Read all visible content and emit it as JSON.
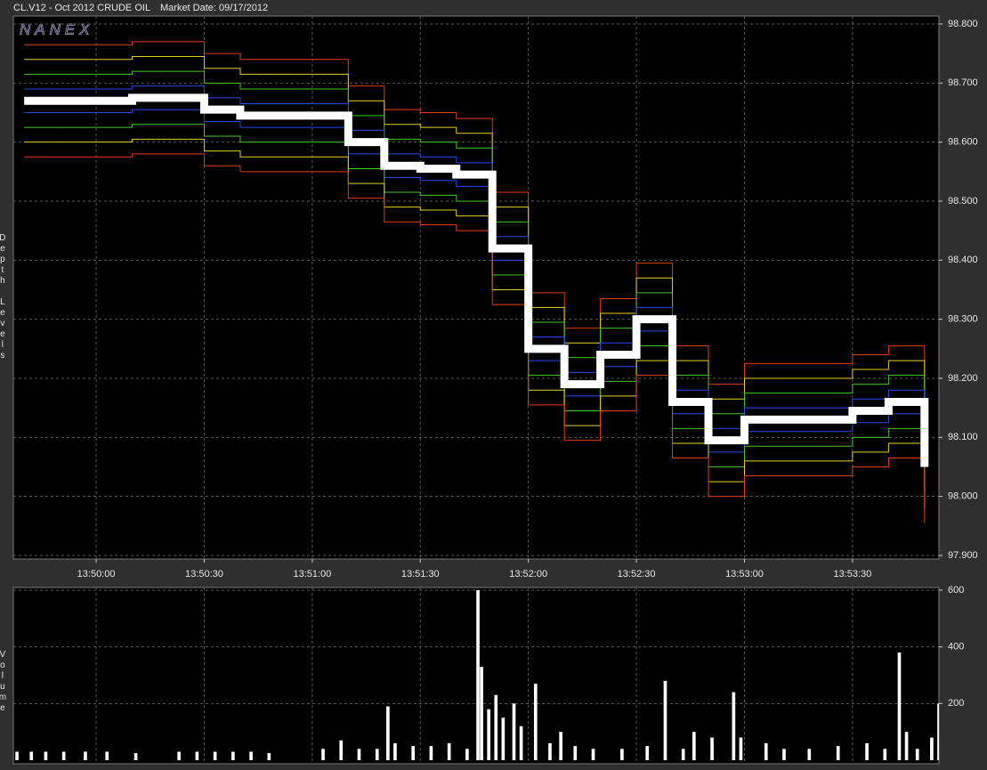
{
  "chart_data": [
    {
      "type": "line",
      "step": true,
      "title": "CL.V12 - Oct 2012 CRUDE OIL",
      "subtitle": "Market Date: 09/17/2012",
      "watermark": "NANEX",
      "ylabel": "Depth Levels",
      "x": [
        49780,
        49790,
        49800,
        49810,
        49820,
        49830,
        49840,
        49850,
        49860,
        49870,
        49880,
        49890,
        49900,
        49910,
        49920,
        49930,
        49940,
        49950,
        49960,
        49970,
        49980,
        49990,
        50000,
        50010,
        50020,
        50030
      ],
      "xlim": [
        49777,
        50034
      ],
      "xticks": [
        {
          "value": 49800,
          "label": "13:50:00"
        },
        {
          "value": 49830,
          "label": "13:50:30"
        },
        {
          "value": 49860,
          "label": "13:51:00"
        },
        {
          "value": 49890,
          "label": "13:51:30"
        },
        {
          "value": 49920,
          "label": "13:52:00"
        },
        {
          "value": 49950,
          "label": "13:52:30"
        },
        {
          "value": 49980,
          "label": "13:53:00"
        },
        {
          "value": 50010,
          "label": "13:53:30"
        }
      ],
      "ylim": [
        97.9,
        98.8
      ],
      "yticks": [
        {
          "value": 98.8,
          "label": "98.800"
        },
        {
          "value": 98.7,
          "label": "98.700"
        },
        {
          "value": 98.6,
          "label": "98.600"
        },
        {
          "value": 98.5,
          "label": "98.500"
        },
        {
          "value": 98.4,
          "label": "98.400"
        },
        {
          "value": 98.3,
          "label": "98.300"
        },
        {
          "value": 98.2,
          "label": "98.200"
        },
        {
          "value": 98.1,
          "label": "98.100"
        },
        {
          "value": 98,
          "label": "98.000"
        },
        {
          "value": 97.9,
          "label": "97.900"
        }
      ],
      "grid": true,
      "series": [
        {
          "color": "#e83a14",
          "line_width": 1,
          "values": [
            98.765,
            98.765,
            98.765,
            98.77,
            98.77,
            98.75,
            98.74,
            98.74,
            98.74,
            98.695,
            98.655,
            98.65,
            98.64,
            98.515,
            98.345,
            98.285,
            98.335,
            98.395,
            98.255,
            98.19,
            98.225,
            98.225,
            98.225,
            98.24,
            98.255,
            98.145
          ]
        },
        {
          "color": "#e8d020",
          "line_width": 1,
          "values": [
            98.74,
            98.74,
            98.74,
            98.745,
            98.745,
            98.725,
            98.715,
            98.715,
            98.715,
            98.67,
            98.63,
            98.625,
            98.615,
            98.49,
            98.32,
            98.26,
            98.31,
            98.37,
            98.23,
            98.165,
            98.2,
            98.2,
            98.2,
            98.215,
            98.23,
            98.12
          ]
        },
        {
          "color": "#44c824",
          "line_width": 1,
          "values": [
            98.715,
            98.715,
            98.715,
            98.72,
            98.72,
            98.7,
            98.69,
            98.69,
            98.69,
            98.645,
            98.605,
            98.6,
            98.59,
            98.465,
            98.295,
            98.235,
            98.285,
            98.345,
            98.205,
            98.14,
            98.175,
            98.175,
            98.175,
            98.19,
            98.205,
            98.095
          ]
        },
        {
          "color": "#2848f0",
          "line_width": 1,
          "values": [
            98.69,
            98.69,
            98.69,
            98.695,
            98.695,
            98.675,
            98.665,
            98.665,
            98.665,
            98.62,
            98.58,
            98.575,
            98.565,
            98.44,
            98.27,
            98.21,
            98.26,
            98.32,
            98.18,
            98.115,
            98.15,
            98.15,
            98.15,
            98.165,
            98.18,
            98.07
          ]
        },
        {
          "color": "#2848f0",
          "line_width": 1,
          "values": [
            98.65,
            98.65,
            98.65,
            98.655,
            98.655,
            98.635,
            98.625,
            98.625,
            98.625,
            98.58,
            98.54,
            98.535,
            98.525,
            98.4,
            98.23,
            98.17,
            98.22,
            98.28,
            98.14,
            98.075,
            98.11,
            98.11,
            98.11,
            98.125,
            98.14,
            98.03
          ]
        },
        {
          "color": "#44c824",
          "line_width": 1,
          "values": [
            98.625,
            98.625,
            98.625,
            98.63,
            98.63,
            98.61,
            98.6,
            98.6,
            98.6,
            98.555,
            98.515,
            98.51,
            98.5,
            98.375,
            98.205,
            98.145,
            98.195,
            98.255,
            98.115,
            98.05,
            98.085,
            98.085,
            98.085,
            98.1,
            98.115,
            98.005
          ]
        },
        {
          "color": "#e8d020",
          "line_width": 1,
          "values": [
            98.6,
            98.6,
            98.6,
            98.605,
            98.605,
            98.585,
            98.575,
            98.575,
            98.575,
            98.53,
            98.49,
            98.485,
            98.475,
            98.35,
            98.18,
            98.12,
            98.17,
            98.23,
            98.09,
            98.025,
            98.06,
            98.06,
            98.06,
            98.075,
            98.09,
            97.98
          ]
        },
        {
          "color": "#e83a14",
          "line_width": 1,
          "values": [
            98.575,
            98.575,
            98.575,
            98.58,
            98.58,
            98.56,
            98.55,
            98.55,
            98.55,
            98.505,
            98.465,
            98.46,
            98.45,
            98.325,
            98.155,
            98.095,
            98.145,
            98.205,
            98.065,
            98,
            98.035,
            98.035,
            98.035,
            98.05,
            98.065,
            97.955
          ]
        },
        {
          "color": "#ffffff",
          "line_width": 9,
          "values": [
            98.67,
            98.67,
            98.67,
            98.675,
            98.675,
            98.655,
            98.645,
            98.645,
            98.645,
            98.6,
            98.56,
            98.555,
            98.545,
            98.42,
            98.25,
            98.19,
            98.24,
            98.3,
            98.16,
            98.095,
            98.13,
            98.13,
            98.13,
            98.145,
            98.16,
            98.05
          ]
        }
      ]
    },
    {
      "type": "bar",
      "ylabel": "Volume",
      "color": "#ffffff",
      "x": [
        49778,
        49782,
        49786,
        49791,
        49797,
        49803,
        49811,
        49823,
        49828,
        49833,
        49838,
        49843,
        49848,
        49863,
        49868,
        49873,
        49878,
        49881,
        49883,
        49888,
        49893,
        49898,
        49903,
        49906,
        49907,
        49909,
        49911,
        49913,
        49916,
        49918,
        49922,
        49926,
        49929,
        49933,
        49938,
        49946,
        49953,
        49958,
        49963,
        49966,
        49971,
        49977,
        49979,
        49986,
        49991,
        49998,
        50006,
        50014,
        50019,
        50023,
        50025,
        50028,
        50032,
        50034
      ],
      "values": [
        30,
        30,
        30,
        30,
        30,
        30,
        25,
        30,
        30,
        30,
        30,
        30,
        25,
        40,
        70,
        40,
        40,
        190,
        60,
        50,
        50,
        60,
        40,
        600,
        330,
        180,
        230,
        150,
        200,
        120,
        270,
        60,
        100,
        50,
        40,
        40,
        50,
        280,
        40,
        100,
        80,
        240,
        80,
        60,
        40,
        40,
        50,
        60,
        40,
        380,
        100,
        40,
        80,
        200
      ],
      "ylim": [
        0,
        600
      ],
      "yticks": [
        200,
        400,
        600
      ],
      "grid": true
    }
  ]
}
